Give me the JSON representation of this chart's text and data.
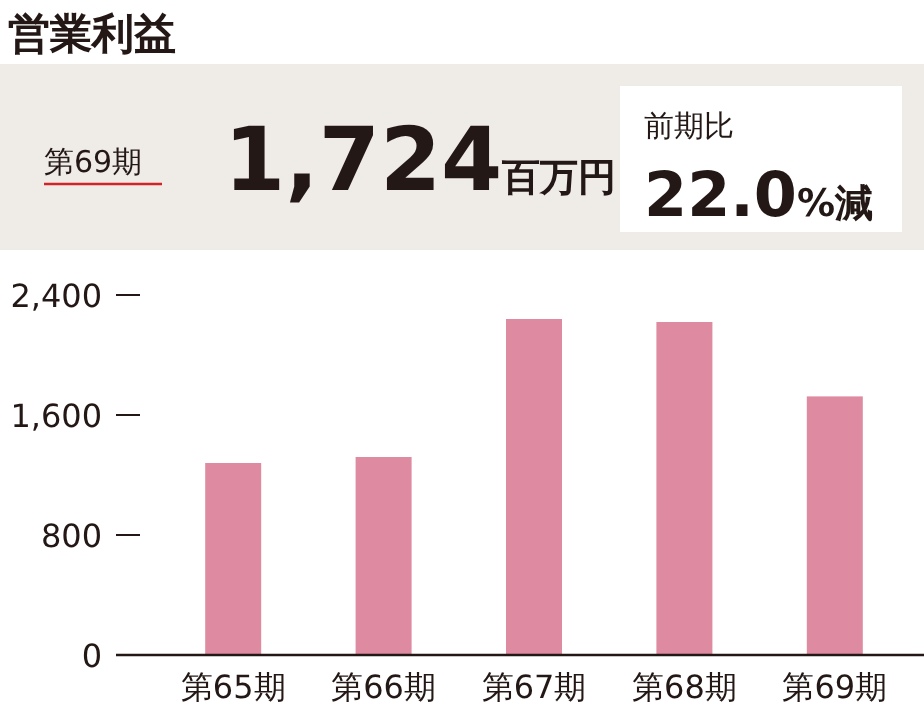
{
  "chart_data": {
    "type": "bar",
    "title": "営業利益",
    "annotations": [
      "第69期",
      "1,724百万円",
      "前期比",
      "22.0%減"
    ],
    "categories": [
      "第65期",
      "第66期",
      "第67期",
      "第68期",
      "第69期"
    ],
    "values": [
      1280,
      1320,
      2240,
      2220,
      1724
    ],
    "color": "#de8aa0",
    "ylim": [
      0,
      2400
    ],
    "yticks": [
      0,
      {
        "value": 800,
        "label": "800"
      },
      {
        "value": 1600,
        "label": "1,600"
      },
      {
        "value": 2400,
        "label": "2,400"
      }
    ],
    "grid": false
  }
}
